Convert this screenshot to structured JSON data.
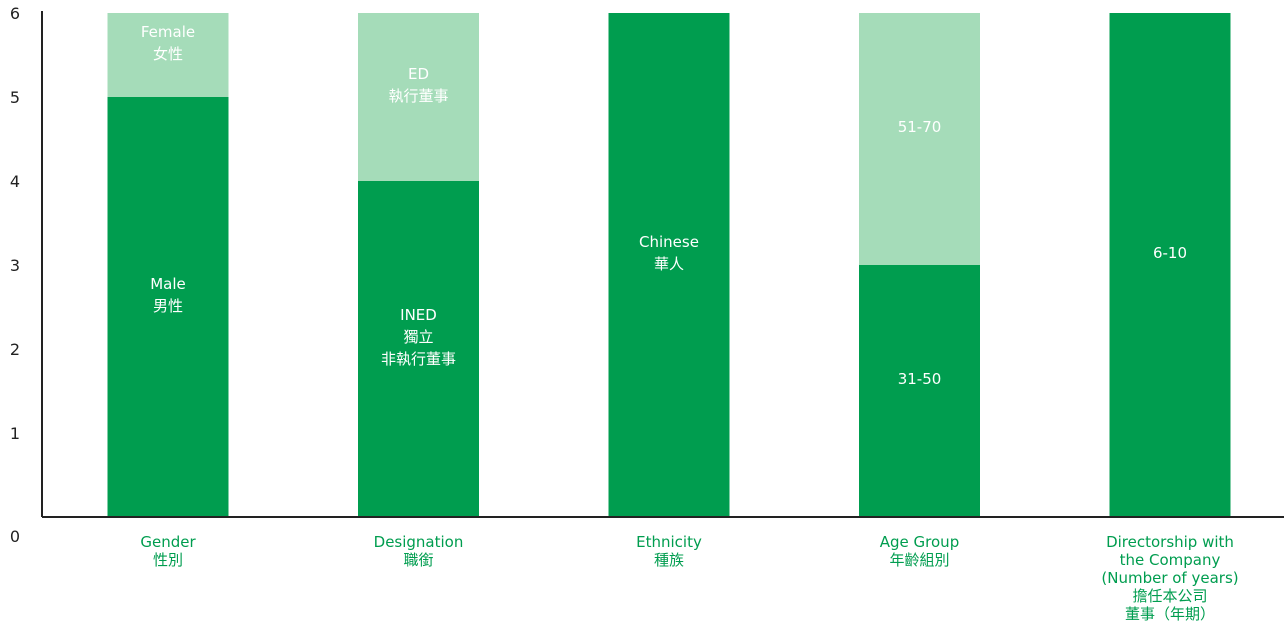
{
  "colors": {
    "primary_segment": "#009D4F",
    "secondary_segment": "#A5DCB9",
    "category_label": "#009D4F",
    "axis": "#222222"
  },
  "chart_data": {
    "type": "bar",
    "stacked": true,
    "title": "",
    "xlabel": "",
    "ylabel": "",
    "ylim": [
      0,
      6
    ],
    "yticks": [
      0,
      1,
      2,
      3,
      4,
      5,
      6
    ],
    "grid": false,
    "legend": "none",
    "categories": [
      {
        "label_lines": [
          "Gender",
          "性別"
        ],
        "segments": [
          {
            "label_lines": [
              "Male",
              "男性"
            ],
            "value": 5,
            "tone": "primary"
          },
          {
            "label_lines": [
              "Female",
              "女性"
            ],
            "value": 1,
            "tone": "secondary"
          }
        ]
      },
      {
        "label_lines": [
          "Designation",
          "職銜"
        ],
        "segments": [
          {
            "label_lines": [
              "INED",
              "獨立",
              "非執行董事"
            ],
            "value": 4,
            "tone": "primary"
          },
          {
            "label_lines": [
              "ED",
              "執行董事"
            ],
            "value": 2,
            "tone": "secondary"
          }
        ]
      },
      {
        "label_lines": [
          "Ethnicity",
          "種族"
        ],
        "segments": [
          {
            "label_lines": [
              "Chinese",
              "華人"
            ],
            "value": 6,
            "tone": "primary"
          }
        ]
      },
      {
        "label_lines": [
          "Age Group",
          "年齡組別"
        ],
        "segments": [
          {
            "label_lines": [
              "31-50"
            ],
            "value": 3,
            "tone": "primary"
          },
          {
            "label_lines": [
              "51-70"
            ],
            "value": 3,
            "tone": "secondary"
          }
        ]
      },
      {
        "label_lines": [
          "Directorship with",
          "the Company",
          "(Number of years)",
          "擔任本公司",
          "董事（年期）"
        ],
        "segments": [
          {
            "label_lines": [
              "6-10"
            ],
            "value": 6,
            "tone": "primary"
          }
        ]
      }
    ]
  }
}
